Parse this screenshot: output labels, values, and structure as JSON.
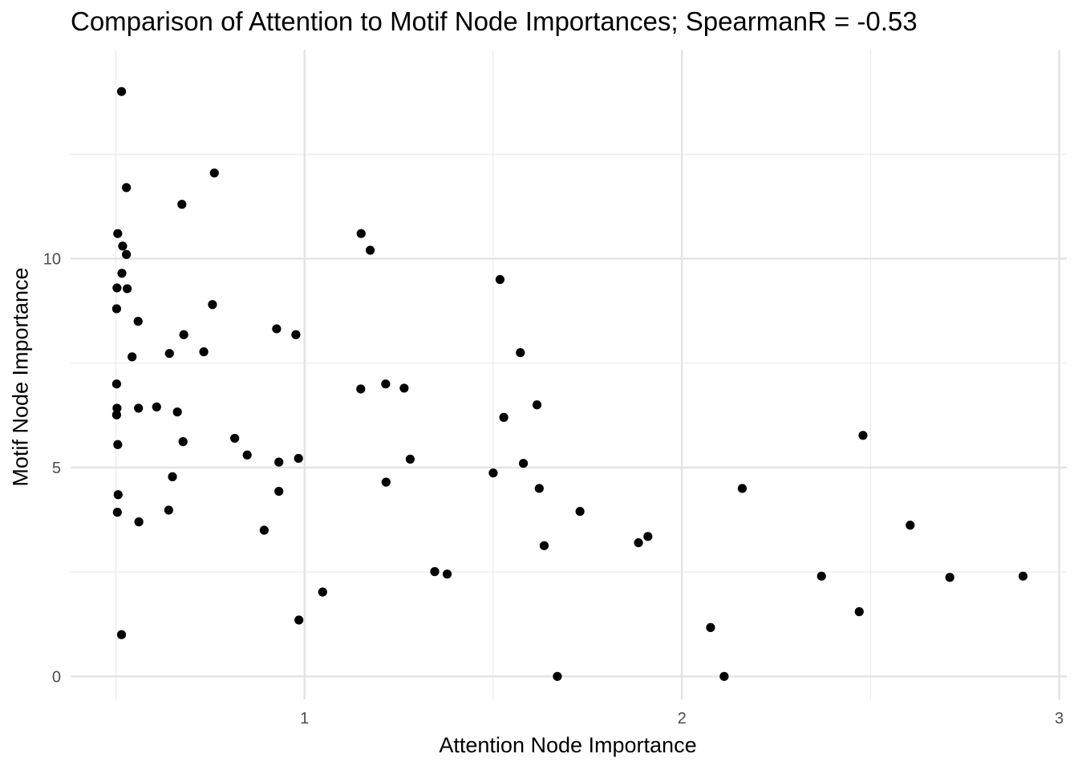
{
  "chart_data": {
    "type": "scatter",
    "title": "Comparison of Attention to Motif Node Importances; SpearmanR = -0.53",
    "xlabel": "Attention Node Importance",
    "ylabel": "Motif Node Importance",
    "xlim": [
      0.38,
      3.02
    ],
    "ylim": [
      -0.55,
      15.0
    ],
    "x_ticks": [
      1,
      2,
      3
    ],
    "x_minor_ticks": [
      0.5,
      1.5,
      2.5
    ],
    "y_ticks": [
      0,
      5,
      10
    ],
    "y_minor_ticks": [
      2.5,
      7.5,
      12.5
    ],
    "grid": true,
    "point_color": "#000000",
    "points": [
      {
        "x": 0.515,
        "y": 14.0
      },
      {
        "x": 0.528,
        "y": 11.7
      },
      {
        "x": 0.505,
        "y": 10.6
      },
      {
        "x": 0.518,
        "y": 10.3
      },
      {
        "x": 0.528,
        "y": 10.1
      },
      {
        "x": 0.516,
        "y": 9.65
      },
      {
        "x": 0.503,
        "y": 9.3
      },
      {
        "x": 0.53,
        "y": 9.28
      },
      {
        "x": 0.502,
        "y": 8.8
      },
      {
        "x": 0.559,
        "y": 8.5
      },
      {
        "x": 0.543,
        "y": 7.65
      },
      {
        "x": 0.502,
        "y": 7.0
      },
      {
        "x": 0.503,
        "y": 6.42
      },
      {
        "x": 0.502,
        "y": 6.26
      },
      {
        "x": 0.56,
        "y": 6.42
      },
      {
        "x": 0.505,
        "y": 5.55
      },
      {
        "x": 0.506,
        "y": 4.35
      },
      {
        "x": 0.504,
        "y": 3.93
      },
      {
        "x": 0.561,
        "y": 3.7
      },
      {
        "x": 0.515,
        "y": 1.0
      },
      {
        "x": 0.608,
        "y": 6.45
      },
      {
        "x": 0.642,
        "y": 7.73
      },
      {
        "x": 0.663,
        "y": 6.33
      },
      {
        "x": 0.675,
        "y": 11.3
      },
      {
        "x": 0.68,
        "y": 8.18
      },
      {
        "x": 0.678,
        "y": 5.62
      },
      {
        "x": 0.65,
        "y": 4.78
      },
      {
        "x": 0.64,
        "y": 3.98
      },
      {
        "x": 0.733,
        "y": 7.77
      },
      {
        "x": 0.756,
        "y": 8.9
      },
      {
        "x": 0.761,
        "y": 12.05
      },
      {
        "x": 0.815,
        "y": 5.7
      },
      {
        "x": 0.848,
        "y": 5.3
      },
      {
        "x": 0.893,
        "y": 3.5
      },
      {
        "x": 0.926,
        "y": 8.32
      },
      {
        "x": 0.932,
        "y": 5.13
      },
      {
        "x": 0.932,
        "y": 4.43
      },
      {
        "x": 0.977,
        "y": 8.18
      },
      {
        "x": 0.984,
        "y": 5.22
      },
      {
        "x": 0.985,
        "y": 1.35
      },
      {
        "x": 1.048,
        "y": 2.02
      },
      {
        "x": 1.15,
        "y": 10.6
      },
      {
        "x": 1.174,
        "y": 10.2
      },
      {
        "x": 1.149,
        "y": 6.88
      },
      {
        "x": 1.215,
        "y": 7.0
      },
      {
        "x": 1.264,
        "y": 6.9
      },
      {
        "x": 1.216,
        "y": 4.65
      },
      {
        "x": 1.28,
        "y": 5.2
      },
      {
        "x": 1.345,
        "y": 2.51
      },
      {
        "x": 1.378,
        "y": 2.45
      },
      {
        "x": 1.5,
        "y": 4.87
      },
      {
        "x": 1.518,
        "y": 9.5
      },
      {
        "x": 1.528,
        "y": 6.2
      },
      {
        "x": 1.572,
        "y": 7.75
      },
      {
        "x": 1.58,
        "y": 5.1
      },
      {
        "x": 1.616,
        "y": 6.5
      },
      {
        "x": 1.622,
        "y": 4.5
      },
      {
        "x": 1.635,
        "y": 3.13
      },
      {
        "x": 1.67,
        "y": 0.0
      },
      {
        "x": 1.73,
        "y": 3.95
      },
      {
        "x": 1.885,
        "y": 3.2
      },
      {
        "x": 1.91,
        "y": 3.35
      },
      {
        "x": 2.076,
        "y": 1.17
      },
      {
        "x": 2.112,
        "y": 0.0
      },
      {
        "x": 2.16,
        "y": 4.5
      },
      {
        "x": 2.37,
        "y": 2.4
      },
      {
        "x": 2.47,
        "y": 1.55
      },
      {
        "x": 2.48,
        "y": 5.77
      },
      {
        "x": 2.605,
        "y": 3.62
      },
      {
        "x": 2.71,
        "y": 2.37
      },
      {
        "x": 2.904,
        "y": 2.4
      }
    ]
  }
}
